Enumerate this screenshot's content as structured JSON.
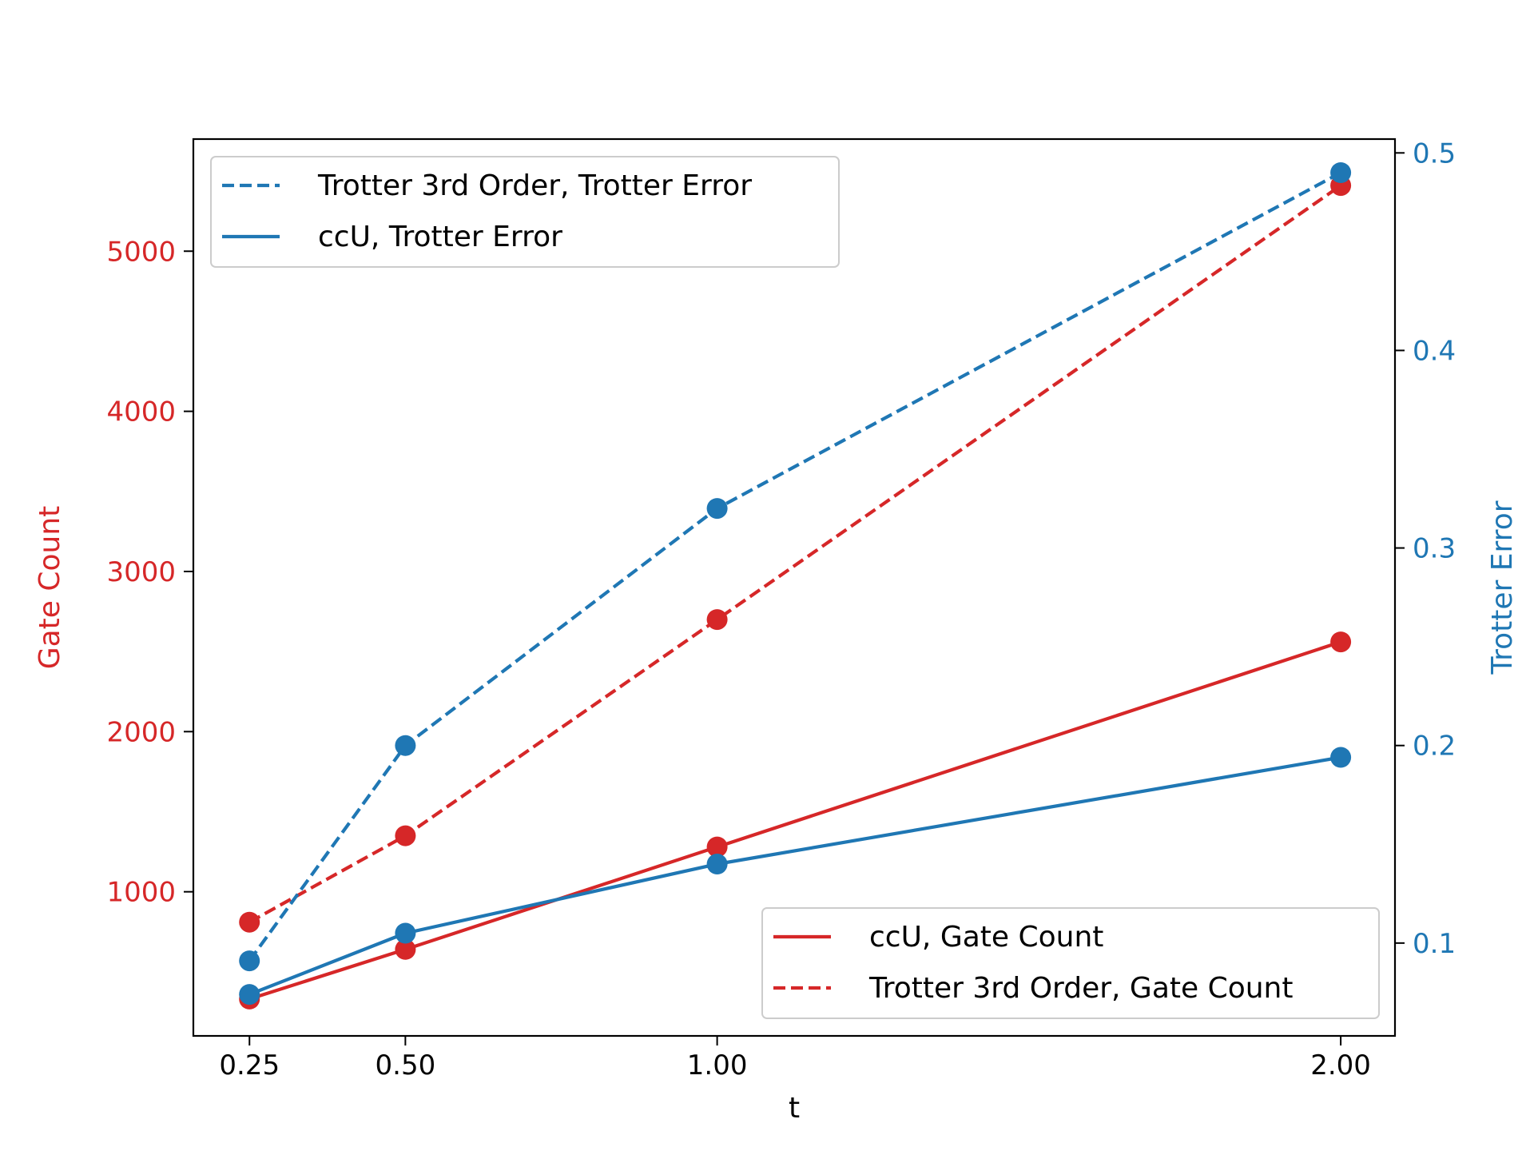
{
  "chart_data": {
    "type": "line",
    "x": [
      0.25,
      0.5,
      1.0,
      2.0
    ],
    "xlabel": "t",
    "x_ticks": [
      "0.25",
      "0.50",
      "1.00",
      "2.00"
    ],
    "left_axis": {
      "label": "Gate Count",
      "color": "#d62728",
      "ylim": [
        100,
        5700
      ],
      "ticks": [
        1000,
        2000,
        3000,
        4000,
        5000
      ],
      "tick_labels": [
        "1000",
        "2000",
        "3000",
        "4000",
        "5000"
      ]
    },
    "right_axis": {
      "label": "Trotter Error",
      "color": "#1f77b4",
      "ylim": [
        0.053,
        0.507
      ],
      "ticks": [
        0.1,
        0.2,
        0.3,
        0.4,
        0.5
      ],
      "tick_labels": [
        "0.1",
        "0.2",
        "0.3",
        "0.4",
        "0.5"
      ]
    },
    "series": [
      {
        "name": "ccU, Gate Count",
        "axis": "left",
        "style": "solid",
        "color": "#d62728",
        "values": [
          330,
          640,
          1280,
          2560
        ]
      },
      {
        "name": "Trotter 3rd Order, Gate Count",
        "axis": "left",
        "style": "dashed",
        "color": "#d62728",
        "values": [
          810,
          1350,
          2700,
          5410
        ]
      },
      {
        "name": "ccU, Trotter Error",
        "axis": "right",
        "style": "solid",
        "color": "#1f77b4",
        "values": [
          0.074,
          0.105,
          0.14,
          0.194
        ]
      },
      {
        "name": "Trotter 3rd Order, Trotter Error",
        "axis": "right",
        "style": "dashed",
        "color": "#1f77b4",
        "values": [
          0.091,
          0.2,
          0.32,
          0.49
        ]
      }
    ],
    "legends": [
      {
        "location": "upper-left",
        "entries": [
          "Trotter 3rd Order, Trotter Error",
          "ccU, Trotter Error"
        ]
      },
      {
        "location": "lower-right",
        "entries": [
          "ccU, Gate Count",
          "Trotter 3rd Order, Gate Count"
        ]
      }
    ],
    "grid": false
  }
}
